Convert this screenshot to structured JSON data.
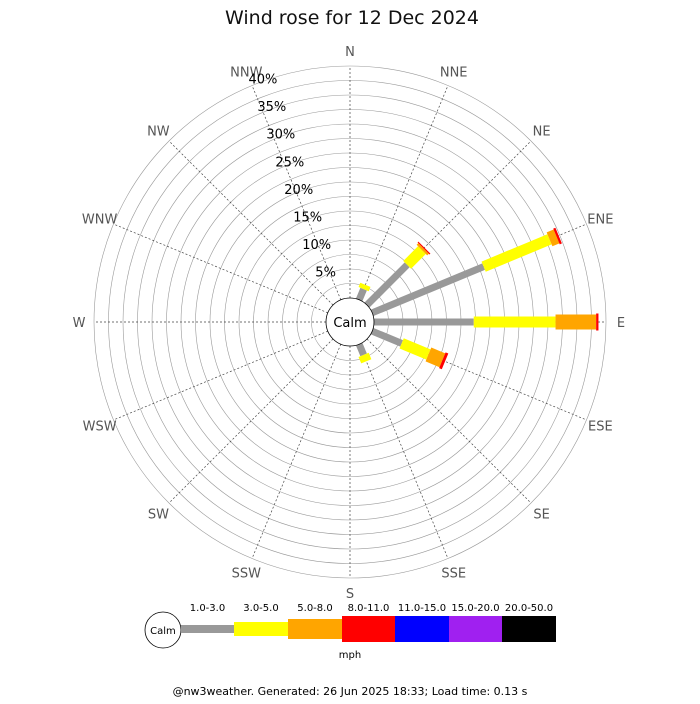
{
  "chart_data": {
    "type": "wind-rose",
    "title": "Wind rose for 12 Dec 2024",
    "directions": [
      "N",
      "NNE",
      "NE",
      "ENE",
      "E",
      "ESE",
      "SE",
      "SSE",
      "S",
      "SSW",
      "SW",
      "WSW",
      "W",
      "WNW",
      "NW",
      "NNW"
    ],
    "radial_ticks": [
      "5%",
      "10%",
      "15%",
      "20%",
      "25%",
      "30%",
      "35%",
      "40%"
    ],
    "radial_range": [
      0,
      40
    ],
    "grid": true,
    "center_label": "Calm",
    "unit_label": "mph",
    "bins": [
      {
        "label": "1.0-3.0",
        "color": "#999999"
      },
      {
        "label": "3.0-5.0",
        "color": "#ffff00"
      },
      {
        "label": "5.0-8.0",
        "color": "#ffa500"
      },
      {
        "label": "8.0-11.0",
        "color": "#ff0000"
      },
      {
        "label": "11.0-15.0",
        "color": "#0000ff"
      },
      {
        "label": "15.0-20.0",
        "color": "#a020f0"
      },
      {
        "label": "20.0-50.0",
        "color": "#000000"
      }
    ],
    "series": [
      {
        "direction": "NNE",
        "values": [
          2.0,
          0.8,
          0,
          0,
          0,
          0,
          0
        ]
      },
      {
        "direction": "NE",
        "values": [
          9.8,
          3.6,
          0.4,
          0.2,
          0,
          0,
          0
        ]
      },
      {
        "direction": "ENE",
        "values": [
          20.8,
          12.3,
          1.3,
          0.4,
          0,
          0,
          0
        ]
      },
      {
        "direction": "E",
        "values": [
          17.2,
          14.1,
          7.0,
          0.4,
          0,
          0,
          0
        ]
      },
      {
        "direction": "ESE",
        "values": [
          5.5,
          5.0,
          2.6,
          0.5,
          0,
          0,
          0
        ]
      },
      {
        "direction": "SSE",
        "values": [
          2.0,
          1.2,
          0,
          0,
          0,
          0,
          0
        ]
      }
    ]
  },
  "footer": "@nw3weather. Generated: 26 Jun 2025 18:33; Load time: 0.13 s"
}
